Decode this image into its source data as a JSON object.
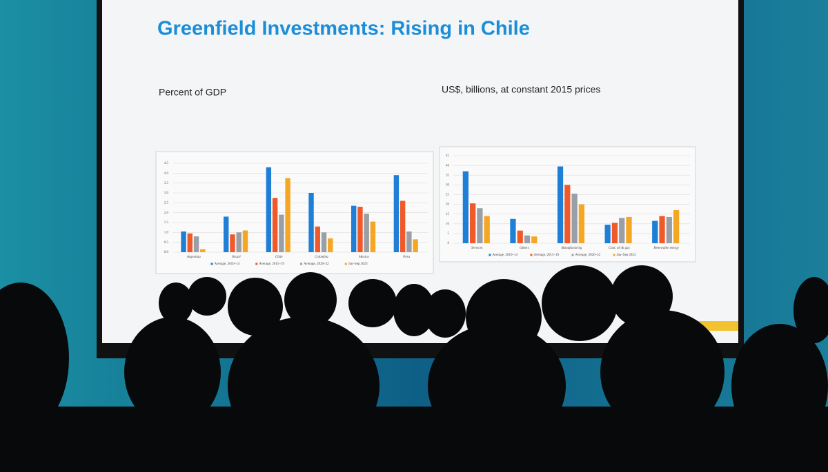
{
  "title": "Greenfield Investments: Rising in Chile",
  "chart_data": [
    {
      "type": "bar",
      "title": "Percent of GDP",
      "categories": [
        "Argentina",
        "Brazil",
        "Chile",
        "Colombia",
        "Mexico",
        "Peru"
      ],
      "series": [
        {
          "name": "Average, 2010–14",
          "color": "#1f7fd6",
          "values": [
            1.05,
            1.8,
            4.3,
            3.0,
            2.35,
            3.9
          ]
        },
        {
          "name": "Average, 2015–19",
          "color": "#f0592a",
          "values": [
            0.95,
            0.9,
            2.75,
            1.3,
            2.3,
            2.6
          ]
        },
        {
          "name": "Average, 2020–22",
          "color": "#9a9fa6",
          "values": [
            0.8,
            1.0,
            1.9,
            1.0,
            1.95,
            1.05
          ]
        },
        {
          "name": "Jan–Sep 2023",
          "color": "#f5a623",
          "values": [
            0.15,
            1.1,
            3.75,
            0.7,
            1.55,
            0.65
          ]
        }
      ],
      "ylim": [
        0,
        4.5
      ],
      "yticks": [
        {
          "value": 0,
          "label": "0.0"
        },
        0.5,
        {
          "value": 1,
          "label": "1.0"
        },
        1.5,
        {
          "value": 2,
          "label": "2.0"
        },
        2.5,
        {
          "value": 3,
          "label": "3.0"
        },
        3.5,
        {
          "value": 4,
          "label": "4.0"
        },
        4.5
      ],
      "grid": true
    },
    {
      "type": "bar",
      "title": "US$, billions, at constant 2015 prices",
      "categories": [
        "Services",
        "Others",
        "Manufacturing",
        "Coal, oil & gas",
        "Renewable energy"
      ],
      "series": [
        {
          "name": "Average, 2010–14",
          "color": "#1f7fd6",
          "values": [
            37,
            12.5,
            39.5,
            9.5,
            11.5
          ]
        },
        {
          "name": "Average, 2015–19",
          "color": "#f0592a",
          "values": [
            20.5,
            6.5,
            30,
            10.5,
            14
          ]
        },
        {
          "name": "Average, 2020–22",
          "color": "#9a9fa6",
          "values": [
            18,
            4,
            25.5,
            13,
            13.5
          ]
        },
        {
          "name": "Jan–Sep 2023",
          "color": "#f5a623",
          "values": [
            14,
            3.5,
            20,
            13.5,
            17
          ]
        }
      ],
      "ylim": [
        0,
        45
      ],
      "yticks": [
        0,
        5,
        10,
        15,
        20,
        25,
        30,
        35,
        40,
        45
      ],
      "grid": true
    }
  ]
}
